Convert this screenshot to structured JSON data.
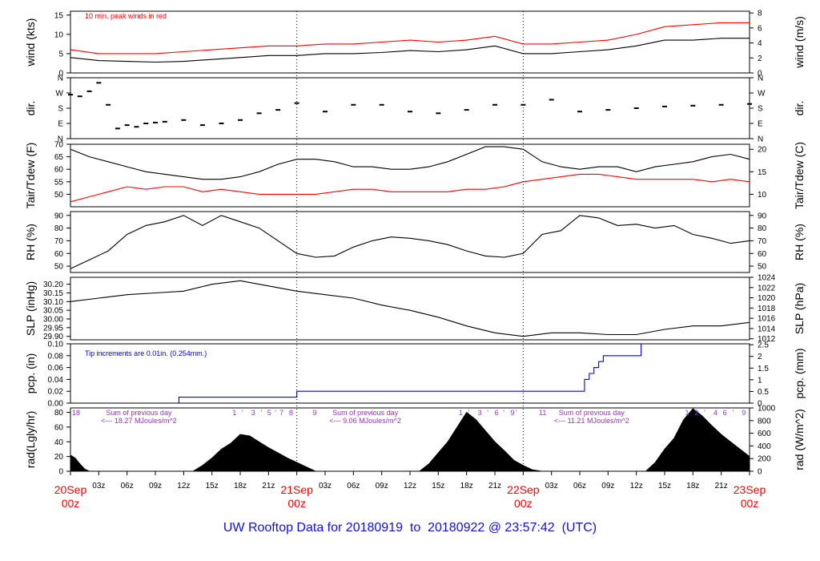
{
  "title": "UW Rooftop Data for 20180919  to  20180922 @ 23:57:42  (UTC)",
  "colors": {
    "black": "#000000",
    "red": "#ff0000",
    "blue": "#0000ff",
    "purple": "#9a30c8",
    "title": "#1010e0"
  },
  "time_axis": {
    "major": [
      {
        "hours": 0,
        "date": "20Sep",
        "z": "00z"
      },
      {
        "hours": 24,
        "date": "21Sep",
        "z": "00z"
      },
      {
        "hours": 48,
        "date": "22Sep",
        "z": "00z"
      },
      {
        "hours": 72,
        "date": "23Sep",
        "z": "00z"
      }
    ],
    "minor_labels": [
      "03z",
      "06z",
      "09z",
      "12z",
      "15z",
      "18z",
      "21z"
    ]
  },
  "chart_data": [
    {
      "id": "wind",
      "type": "line",
      "ylabel_left": "wind (kts)",
      "ylabel_right": "wind (m/s)",
      "yticks_left": [
        0,
        5,
        10,
        15
      ],
      "ylim_left": [
        0,
        16
      ],
      "yticks_right": [
        0,
        2,
        4,
        6,
        8
      ],
      "ylim_right": [
        0,
        8.23
      ],
      "annotation": "10 min. peak winds in red",
      "series": [
        {
          "x_hours": [
            0,
            3,
            6,
            9,
            12,
            15,
            18,
            21,
            24,
            27,
            30,
            33,
            36,
            39,
            42,
            45,
            48,
            51,
            54,
            57,
            60,
            63,
            66,
            69,
            72
          ],
          "values": [
            4,
            3.2,
            3,
            2.8,
            3,
            3.5,
            4,
            4.5,
            4.5,
            5,
            5,
            5.3,
            5.8,
            5.5,
            6,
            7,
            5,
            5,
            5.5,
            6,
            7,
            8.5,
            8.5,
            9,
            9
          ]
        },
        {
          "color": "red",
          "x_hours": [
            0,
            3,
            6,
            9,
            12,
            15,
            18,
            21,
            24,
            27,
            30,
            33,
            36,
            39,
            42,
            45,
            48,
            51,
            54,
            57,
            60,
            63,
            66,
            69,
            72
          ],
          "values": [
            6,
            5,
            5,
            5,
            5.5,
            6,
            6.5,
            7,
            7,
            7.5,
            7.5,
            8,
            8.5,
            8,
            8.5,
            9.5,
            7.5,
            7.5,
            8,
            8.5,
            10,
            12,
            12.5,
            13,
            13
          ]
        }
      ]
    },
    {
      "id": "dir",
      "type": "scatter",
      "ylabel_left": "dir.",
      "ylabel_right": "dir.",
      "ytick_labels": [
        "N",
        "E",
        "S",
        "W",
        "N"
      ],
      "ylim": [
        0,
        360
      ],
      "x_hours": [
        0,
        1,
        2,
        3,
        4,
        5,
        6,
        7,
        8,
        9,
        10,
        12,
        14,
        16,
        18,
        20,
        22,
        24,
        27,
        30,
        33,
        36,
        39,
        42,
        45,
        48,
        51,
        54,
        57,
        60,
        63,
        66,
        69,
        72
      ],
      "values": [
        260,
        250,
        280,
        330,
        200,
        60,
        80,
        70,
        90,
        95,
        100,
        110,
        80,
        90,
        110,
        150,
        170,
        210,
        160,
        200,
        200,
        160,
        150,
        170,
        200,
        200,
        230,
        160,
        170,
        180,
        190,
        195,
        200,
        205
      ]
    },
    {
      "id": "temp",
      "type": "line",
      "ylabel_left": "Tair/Tdew (F)",
      "ylabel_right": "Tair/Tdew (C)",
      "yticks_left": [
        50,
        55,
        60,
        65,
        70
      ],
      "ylim_left": [
        45,
        70
      ],
      "yticks_right": [
        10,
        15,
        20
      ],
      "ylim_right": [
        7.22,
        21.11
      ],
      "series": [
        {
          "x_hours": [
            0,
            2,
            4,
            6,
            8,
            10,
            12,
            14,
            16,
            18,
            20,
            22,
            24,
            26,
            28,
            30,
            32,
            34,
            36,
            38,
            40,
            42,
            44,
            46,
            48,
            50,
            52,
            54,
            56,
            58,
            60,
            62,
            64,
            66,
            68,
            70,
            72
          ],
          "values": [
            68,
            65,
            63,
            61,
            59,
            58,
            57,
            56,
            56,
            57,
            59,
            62,
            64,
            64,
            63,
            61,
            61,
            60,
            60,
            61,
            63,
            66,
            69,
            69,
            68,
            63,
            61,
            60,
            61,
            61,
            59,
            61,
            62,
            63,
            65,
            66,
            64
          ]
        },
        {
          "color": "red",
          "x_hours": [
            0,
            2,
            4,
            6,
            8,
            10,
            12,
            14,
            16,
            18,
            20,
            22,
            24,
            26,
            28,
            30,
            32,
            34,
            36,
            38,
            40,
            42,
            44,
            46,
            48,
            50,
            52,
            54,
            56,
            58,
            60,
            62,
            64,
            66,
            68,
            70,
            72
          ],
          "values": [
            47,
            49,
            51,
            53,
            52,
            53,
            53,
            51,
            52,
            51,
            50,
            50,
            50,
            50,
            51,
            52,
            52,
            51,
            51,
            51,
            51,
            52,
            52,
            53,
            55,
            56,
            57,
            58,
            58,
            57,
            56,
            56,
            56,
            56,
            55,
            56,
            55
          ]
        }
      ]
    },
    {
      "id": "rh",
      "type": "line",
      "ylabel_left": "RH (%)",
      "ylabel_right": "RH (%)",
      "yticks": [
        50,
        60,
        70,
        80,
        90
      ],
      "ylim": [
        45,
        93
      ],
      "x_hours": [
        0,
        2,
        4,
        6,
        8,
        10,
        12,
        14,
        16,
        18,
        20,
        22,
        24,
        26,
        28,
        30,
        32,
        34,
        36,
        38,
        40,
        42,
        44,
        46,
        48,
        50,
        52,
        54,
        56,
        58,
        60,
        62,
        64,
        66,
        68,
        70,
        72
      ],
      "values": [
        48,
        55,
        62,
        75,
        82,
        85,
        90,
        82,
        90,
        85,
        80,
        70,
        60,
        57,
        58,
        65,
        70,
        73,
        72,
        70,
        67,
        62,
        58,
        57,
        60,
        75,
        78,
        90,
        88,
        82,
        83,
        80,
        82,
        75,
        72,
        68,
        70
      ]
    },
    {
      "id": "slp",
      "type": "line",
      "ylabel_left": "SLP (inHg)",
      "ylabel_right": "SLP (hPa)",
      "yticks_left": [
        29.9,
        29.95,
        30.0,
        30.05,
        30.1,
        30.15,
        30.2
      ],
      "ylim_left": [
        29.88,
        30.24
      ],
      "ytick_labels_left": [
        "29.90",
        "29.95",
        "30.00",
        "30.05",
        "30.10",
        "30.15",
        "30.20"
      ],
      "yticks_right": [
        1012,
        1014,
        1016,
        1018,
        1020,
        1022,
        1024
      ],
      "ylim_right": [
        1011.8,
        1024.0
      ],
      "x_hours": [
        0,
        3,
        6,
        9,
        12,
        15,
        18,
        21,
        24,
        27,
        30,
        33,
        36,
        39,
        42,
        45,
        48,
        51,
        54,
        57,
        60,
        63,
        66,
        69,
        72
      ],
      "values": [
        30.1,
        30.12,
        30.14,
        30.15,
        30.16,
        30.2,
        30.22,
        30.19,
        30.16,
        30.14,
        30.12,
        30.08,
        30.05,
        30.01,
        29.96,
        29.92,
        29.9,
        29.92,
        29.92,
        29.91,
        29.91,
        29.94,
        29.96,
        29.96,
        29.98
      ]
    },
    {
      "id": "pcp",
      "type": "line",
      "ylabel_left": "pcp. (in)",
      "ylabel_right": "pcp. (mm)",
      "yticks_left": [
        0,
        0.02,
        0.04,
        0.06,
        0.08,
        0.1
      ],
      "ylim_left": [
        0,
        0.1
      ],
      "ytick_labels_left": [
        "0.00",
        "0.02",
        "0.04",
        "0.06",
        "0.08",
        "0.10"
      ],
      "yticks_right": [
        0,
        0.5,
        1,
        1.5,
        2,
        2.5
      ],
      "ylim_right": [
        0,
        2.54
      ],
      "ytick_labels_right": [
        "0",
        "0.5",
        "1",
        "1.5",
        "2",
        "2.5"
      ],
      "annotation": "Tip increments are 0.01in. (0.254mm.)",
      "x_hours": [
        0,
        11.5,
        11.5,
        24,
        24,
        54.5,
        54.5,
        55,
        55,
        55.5,
        55.5,
        56,
        56,
        56.5,
        56.5,
        59,
        59,
        60.5,
        60.5,
        60.5,
        60.5,
        72
      ],
      "values": [
        0,
        0,
        0.01,
        0.01,
        0.02,
        0.02,
        0.04,
        0.04,
        0.05,
        0.05,
        0.06,
        0.06,
        0.07,
        0.07,
        0.08,
        0.08,
        0.08,
        0.08,
        0.09,
        0.09,
        0.1,
        0.1
      ]
    },
    {
      "id": "rad",
      "type": "area",
      "ylabel_left": "rad(Lgly/hr)",
      "ylabel_right": "rad (W/m^2)",
      "yticks_left": [
        0,
        20,
        40,
        60,
        80
      ],
      "ylim_left": [
        0,
        86
      ],
      "yticks_right": [
        0,
        200,
        400,
        600,
        800,
        1000
      ],
      "ylim_right": [
        0,
        1000
      ],
      "x_hours": [
        0,
        0.5,
        1,
        1.5,
        2,
        13,
        14,
        15,
        16,
        17,
        18,
        19,
        20,
        21,
        22,
        23,
        24,
        25,
        26,
        37,
        38,
        39,
        40,
        41,
        42,
        43,
        44,
        45,
        46,
        47,
        48,
        49,
        50,
        61,
        62,
        63,
        64,
        65,
        66,
        67,
        68,
        69,
        70,
        71,
        72
      ],
      "values": [
        22,
        18,
        10,
        3,
        0,
        0,
        8,
        18,
        30,
        38,
        50,
        48,
        40,
        32,
        25,
        18,
        12,
        6,
        0,
        0,
        10,
        25,
        40,
        60,
        80,
        70,
        55,
        40,
        28,
        15,
        8,
        2,
        0,
        0,
        12,
        30,
        45,
        70,
        85,
        75,
        62,
        50,
        40,
        30,
        20
      ],
      "hour_labels": [
        {
          "hours": 0,
          "text": "18"
        },
        {
          "hours": 17,
          "text": "1"
        },
        {
          "hours": 18,
          "text": "'"
        },
        {
          "hours": 19,
          "text": "3"
        },
        {
          "hours": 20,
          "text": "'"
        },
        {
          "hours": 20.7,
          "text": "5"
        },
        {
          "hours": 21.5,
          "text": "'"
        },
        {
          "hours": 22,
          "text": "7"
        },
        {
          "hours": 23,
          "text": "8"
        },
        {
          "hours": 25.5,
          "text": "9"
        },
        {
          "hours": 41,
          "text": "1"
        },
        {
          "hours": 42,
          "text": "'"
        },
        {
          "hours": 43,
          "text": "3"
        },
        {
          "hours": 44,
          "text": "'"
        },
        {
          "hours": 44.8,
          "text": "6"
        },
        {
          "hours": 45.7,
          "text": "'"
        },
        {
          "hours": 46.5,
          "text": "9"
        },
        {
          "hours": 47,
          "text": "'"
        },
        {
          "hours": 49.5,
          "text": "11"
        },
        {
          "hours": 65,
          "text": "1"
        },
        {
          "hours": 66,
          "text": "2"
        },
        {
          "hours": 67,
          "text": "'"
        },
        {
          "hours": 68,
          "text": "4"
        },
        {
          "hours": 69,
          "text": "6"
        },
        {
          "hours": 70,
          "text": "'"
        },
        {
          "hours": 71,
          "text": "9"
        }
      ],
      "notes": [
        {
          "hours": 7,
          "lines": [
            "Sum of previous day",
            "<--- 18.27 MJoules/m^2"
          ]
        },
        {
          "hours": 31,
          "lines": [
            "Sum of previous day",
            "<--- 9.06 MJoules/m^2"
          ]
        },
        {
          "hours": 55,
          "lines": [
            "Sum of previous day",
            "<--- 11.21 MJoules/m^2"
          ]
        }
      ]
    }
  ]
}
